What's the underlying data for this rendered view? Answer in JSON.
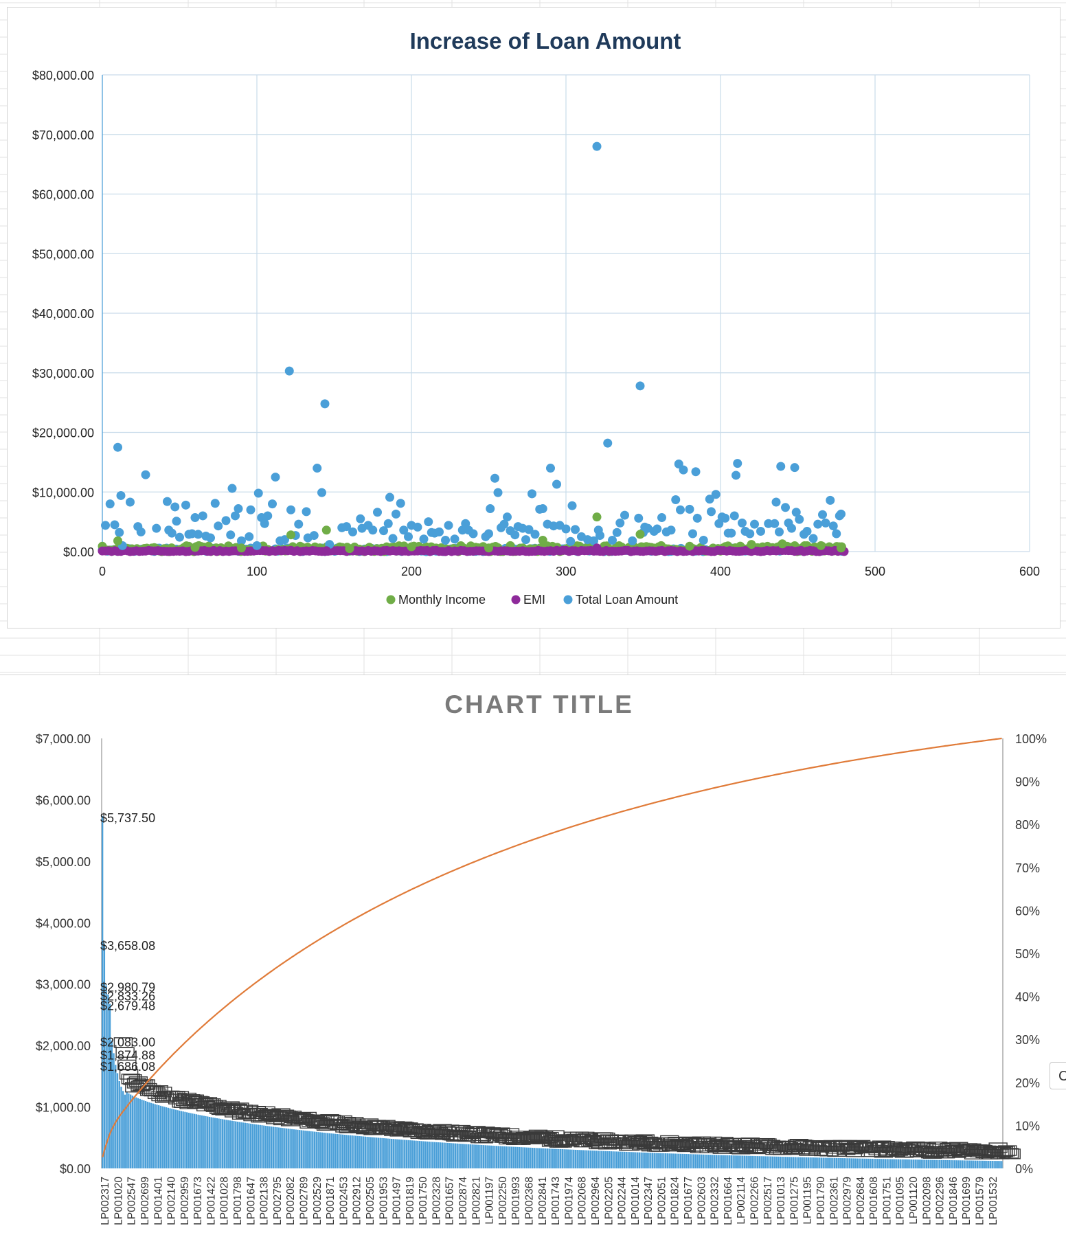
{
  "chart_data": [
    {
      "type": "scatter",
      "title": "Increase of Loan Amount",
      "xlim": [
        0,
        600
      ],
      "ylim": [
        0,
        80000
      ],
      "x_ticks": [
        "0",
        "100",
        "200",
        "300",
        "400",
        "500",
        "600"
      ],
      "y_ticks": [
        "$0.00",
        "$10,000.00",
        "$20,000.00",
        "$30,000.00",
        "$40,000.00",
        "$50,000.00",
        "$60,000.00",
        "$70,000.00",
        "$80,000.00"
      ],
      "grid": true,
      "legend_position": "bottom",
      "series": [
        {
          "name": "Monthly Income",
          "color": "#70ad47",
          "points": [
            [
              10,
              1800
            ],
            [
              60,
              700
            ],
            [
              90,
              600
            ],
            [
              122,
              2800
            ],
            [
              145,
              3600
            ],
            [
              160,
              500
            ],
            [
              200,
              800
            ],
            [
              250,
              600
            ],
            [
              285,
              1900
            ],
            [
              320,
              5800
            ],
            [
              348,
              2900
            ],
            [
              380,
              900
            ],
            [
              420,
              1200
            ],
            [
              440,
              1300
            ],
            [
              465,
              1000
            ],
            [
              478,
              600
            ]
          ],
          "baseline_band": [
            0,
            480,
            0,
            1000
          ]
        },
        {
          "name": "EMI",
          "color": "#8e2a9a",
          "points": [
            [
              320,
              600
            ],
            [
              122,
              200
            ],
            [
              145,
              150
            ]
          ],
          "baseline_band": [
            0,
            480,
            0,
            200
          ]
        },
        {
          "name": "Total Loan Amount",
          "color": "#4a9fd8",
          "points": [
            [
              2,
              4400
            ],
            [
              5,
              8000
            ],
            [
              8,
              4500
            ],
            [
              10,
              17500
            ],
            [
              11,
              3200
            ],
            [
              12,
              9400
            ],
            [
              13,
              1000
            ],
            [
              18,
              8300
            ],
            [
              23,
              4200
            ],
            [
              25,
              3300
            ],
            [
              28,
              12900
            ],
            [
              35,
              3900
            ],
            [
              42,
              8400
            ],
            [
              43,
              3600
            ],
            [
              45,
              3100
            ],
            [
              47,
              7500
            ],
            [
              48,
              5100
            ],
            [
              50,
              2400
            ],
            [
              54,
              7800
            ],
            [
              56,
              2900
            ],
            [
              58,
              3000
            ],
            [
              60,
              5700
            ],
            [
              62,
              2900
            ],
            [
              65,
              6000
            ],
            [
              67,
              2600
            ],
            [
              70,
              2300
            ],
            [
              73,
              8100
            ],
            [
              75,
              4300
            ],
            [
              80,
              5200
            ],
            [
              83,
              2800
            ],
            [
              84,
              10600
            ],
            [
              86,
              6000
            ],
            [
              88,
              7200
            ],
            [
              90,
              1800
            ],
            [
              95,
              2500
            ],
            [
              96,
              7000
            ],
            [
              100,
              1000
            ],
            [
              101,
              9800
            ],
            [
              103,
              5700
            ],
            [
              105,
              4700
            ],
            [
              107,
              6000
            ],
            [
              110,
              8000
            ],
            [
              112,
              12500
            ],
            [
              115,
              1800
            ],
            [
              118,
              2000
            ],
            [
              121,
              30300
            ],
            [
              122,
              7000
            ],
            [
              125,
              2700
            ],
            [
              127,
              4600
            ],
            [
              132,
              6700
            ],
            [
              133,
              2300
            ],
            [
              137,
              2700
            ],
            [
              139,
              14000
            ],
            [
              142,
              9900
            ],
            [
              144,
              24800
            ],
            [
              147,
              1200
            ],
            [
              155,
              4000
            ],
            [
              158,
              4200
            ],
            [
              162,
              3300
            ],
            [
              167,
              5500
            ],
            [
              168,
              3900
            ],
            [
              172,
              4400
            ],
            [
              175,
              3600
            ],
            [
              178,
              6600
            ],
            [
              182,
              3500
            ],
            [
              185,
              4700
            ],
            [
              186,
              9100
            ],
            [
              188,
              2200
            ],
            [
              190,
              6300
            ],
            [
              193,
              8100
            ],
            [
              195,
              3600
            ],
            [
              198,
              2500
            ],
            [
              200,
              4400
            ],
            [
              204,
              4100
            ],
            [
              208,
              2100
            ],
            [
              211,
              5000
            ],
            [
              213,
              3200
            ],
            [
              215,
              3100
            ],
            [
              218,
              3300
            ],
            [
              222,
              1900
            ],
            [
              224,
              4400
            ],
            [
              228,
              2100
            ],
            [
              233,
              3600
            ],
            [
              235,
              4700
            ],
            [
              237,
              3600
            ],
            [
              240,
              3000
            ],
            [
              248,
              2500
            ],
            [
              250,
              3000
            ],
            [
              251,
              7200
            ],
            [
              254,
              12300
            ],
            [
              256,
              9900
            ],
            [
              258,
              4000
            ],
            [
              260,
              4600
            ],
            [
              262,
              5800
            ],
            [
              264,
              3500
            ],
            [
              267,
              2800
            ],
            [
              269,
              4200
            ],
            [
              272,
              3900
            ],
            [
              274,
              2000
            ],
            [
              276,
              3700
            ],
            [
              278,
              9700
            ],
            [
              280,
              2900
            ],
            [
              283,
              7100
            ],
            [
              285,
              7200
            ],
            [
              288,
              4600
            ],
            [
              290,
              14000
            ],
            [
              292,
              4300
            ],
            [
              294,
              11300
            ],
            [
              296,
              4400
            ],
            [
              300,
              3800
            ],
            [
              303,
              1700
            ],
            [
              304,
              7700
            ],
            [
              306,
              3700
            ],
            [
              310,
              2500
            ],
            [
              314,
              2000
            ],
            [
              318,
              1800
            ],
            [
              320,
              68000
            ],
            [
              321,
              3600
            ],
            [
              322,
              2700
            ],
            [
              327,
              18200
            ],
            [
              330,
              1900
            ],
            [
              333,
              3200
            ],
            [
              335,
              4800
            ],
            [
              338,
              6100
            ],
            [
              343,
              1800
            ],
            [
              347,
              5600
            ],
            [
              348,
              27800
            ],
            [
              350,
              3200
            ],
            [
              351,
              4100
            ],
            [
              353,
              3900
            ],
            [
              357,
              3400
            ],
            [
              359,
              3800
            ],
            [
              362,
              5700
            ],
            [
              365,
              3300
            ],
            [
              368,
              3600
            ],
            [
              371,
              8700
            ],
            [
              373,
              14700
            ],
            [
              374,
              7000
            ],
            [
              376,
              13700
            ],
            [
              380,
              7100
            ],
            [
              382,
              3000
            ],
            [
              384,
              13400
            ],
            [
              385,
              5600
            ],
            [
              389,
              1900
            ],
            [
              393,
              8800
            ],
            [
              394,
              6700
            ],
            [
              397,
              9600
            ],
            [
              399,
              4700
            ],
            [
              401,
              5800
            ],
            [
              403,
              5600
            ],
            [
              405,
              3100
            ],
            [
              407,
              3100
            ],
            [
              409,
              6000
            ],
            [
              410,
              12800
            ],
            [
              411,
              14800
            ],
            [
              414,
              4800
            ],
            [
              416,
              3400
            ],
            [
              419,
              3000
            ],
            [
              422,
              4600
            ],
            [
              426,
              3400
            ],
            [
              431,
              4700
            ],
            [
              435,
              4700
            ],
            [
              436,
              8300
            ],
            [
              438,
              3300
            ],
            [
              439,
              14300
            ],
            [
              442,
              7400
            ],
            [
              444,
              4800
            ],
            [
              446,
              3900
            ],
            [
              448,
              14100
            ],
            [
              449,
              6600
            ],
            [
              451,
              5400
            ],
            [
              454,
              2900
            ],
            [
              456,
              3400
            ],
            [
              460,
              2200
            ],
            [
              463,
              4600
            ],
            [
              466,
              6200
            ],
            [
              468,
              4800
            ],
            [
              471,
              8600
            ],
            [
              473,
              4300
            ],
            [
              475,
              3000
            ],
            [
              477,
              6000
            ],
            [
              478,
              6300
            ]
          ],
          "baseline_band": [
            0,
            480,
            0,
            600
          ]
        }
      ]
    },
    {
      "type": "pareto",
      "title": "CHART TITLE",
      "ylim_left": [
        0,
        7000
      ],
      "ylim_right": [
        0,
        100
      ],
      "y_ticks_left": [
        "$0.00",
        "$1,000.00",
        "$2,000.00",
        "$3,000.00",
        "$4,000.00",
        "$5,000.00",
        "$6,000.00",
        "$7,000.00"
      ],
      "y_ticks_right": [
        "0%",
        "10%",
        "20%",
        "30%",
        "40%",
        "50%",
        "60%",
        "70%",
        "80%",
        "90%",
        "100%"
      ],
      "categories": [
        "LP002317",
        "LP001020",
        "LP002547",
        "LP002699",
        "LP001401",
        "LP002140",
        "LP002959",
        "LP001673",
        "LP001422",
        "LP001028",
        "LP001798",
        "LP001647",
        "LP002138",
        "LP002795",
        "LP002082",
        "LP002789",
        "LP002529",
        "LP001871",
        "LP002453",
        "LP002912",
        "LP002505",
        "LP001953",
        "LP001497",
        "LP001819",
        "LP001750",
        "LP002328",
        "LP001657",
        "LP002874",
        "LP002821",
        "LP001197",
        "LP002250",
        "LP001993",
        "LP002368",
        "LP002841",
        "LP001743",
        "LP001974",
        "LP002068",
        "LP002964",
        "LP002205",
        "LP002244",
        "LP001014",
        "LP002347",
        "LP002051",
        "LP001824",
        "LP001677",
        "LP002603",
        "LP002332",
        "LP001664",
        "LP002114",
        "LP002266",
        "LP002517",
        "LP001013",
        "LP001275",
        "LP001195",
        "LP001790",
        "LP002361",
        "LP002979",
        "LP002684",
        "LP001608",
        "LP001751",
        "LP001095",
        "LP001120",
        "LP002098",
        "LP002296",
        "LP001846",
        "LP001699",
        "LP001579",
        "LP001532"
      ],
      "data_labels": [
        "$5,737.50",
        "$3,658.08",
        "$2,980.79",
        "$2,833.26",
        "$2,679.48",
        "$2,083.00",
        "$1,874.88",
        "$1,686.08"
      ],
      "bar_values": [
        5737.5,
        3658.08,
        2980.79,
        2833.26,
        2679.48,
        2083.0,
        1874.88,
        1686.08,
        1550,
        1420,
        1330,
        1260,
        1200
      ],
      "bar_decay": {
        "count": 480,
        "start": 1250,
        "end": 120
      },
      "bar_color": "#4a9fd8",
      "line_color": "#e07b39",
      "line_series": "cumulative percent",
      "grid": false
    }
  ],
  "side_tab": {
    "label": "C"
  }
}
